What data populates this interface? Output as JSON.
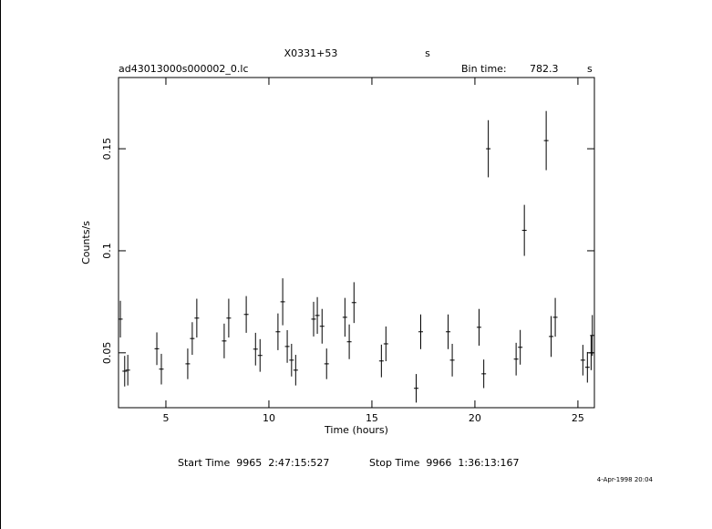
{
  "chart_data": {
    "type": "errorbar",
    "title": "X0331+53",
    "title_unit": "s",
    "subtitle": "ad43013000s000002_0.lc",
    "bin_time_label": "Bin time:",
    "bin_time": 782.3,
    "bin_time_unit": "s",
    "x_label": "Time (hours)",
    "y_label": "Counts/s",
    "start_time": "Start Time  9965  2:47:15:527",
    "stop_time": "Stop Time  9966  1:36:13:167",
    "date": "4-Apr-1998 20:04",
    "color": "#000000",
    "x": [
      2.79,
      3.0,
      3.15,
      4.56,
      4.78,
      6.06,
      6.28,
      6.5,
      7.83,
      8.05,
      8.9,
      9.35,
      9.57,
      10.44,
      10.67,
      10.89,
      11.1,
      11.3,
      12.17,
      12.35,
      12.58,
      12.8,
      13.69,
      13.9,
      14.13,
      15.46,
      15.68,
      17.15,
      17.37,
      18.7,
      18.9,
      20.2,
      20.43,
      20.65,
      22.0,
      22.2,
      22.4,
      23.46,
      23.7,
      23.9,
      25.24,
      25.46,
      25.64,
      25.7
    ],
    "values": [
      0.0665,
      0.041,
      0.0415,
      0.052,
      0.042,
      0.0446,
      0.057,
      0.067,
      0.0558,
      0.067,
      0.0688,
      0.0518,
      0.0487,
      0.0603,
      0.075,
      0.0531,
      0.0464,
      0.0415,
      0.0665,
      0.0683,
      0.063,
      0.0446,
      0.0674,
      0.0554,
      0.0746,
      0.046,
      0.0544,
      0.0326,
      0.0603,
      0.0603,
      0.0464,
      0.0625,
      0.0397,
      0.15,
      0.0469,
      0.0527,
      0.11,
      0.154,
      0.058,
      0.0674,
      0.0464,
      0.0429,
      0.05,
      0.0585
    ],
    "errors": [
      0.009,
      0.0075,
      0.0075,
      0.008,
      0.0075,
      0.0075,
      0.008,
      0.0095,
      0.0085,
      0.0095,
      0.009,
      0.008,
      0.008,
      0.009,
      0.0115,
      0.008,
      0.008,
      0.0075,
      0.0085,
      0.009,
      0.0085,
      0.0075,
      0.0095,
      0.0085,
      0.01,
      0.008,
      0.0085,
      0.007,
      0.0085,
      0.0085,
      0.008,
      0.009,
      0.007,
      0.014,
      0.008,
      0.0085,
      0.0125,
      0.0145,
      0.01,
      0.0095,
      0.0075,
      0.0075,
      0.0085,
      0.01
    ],
    "xlim": [
      2.7,
      25.8
    ],
    "ylim": [
      0.0231,
      0.1849
    ],
    "xticks": [
      5,
      10,
      15,
      20,
      25
    ],
    "yticks": [
      0.05,
      0.1,
      0.15
    ]
  }
}
